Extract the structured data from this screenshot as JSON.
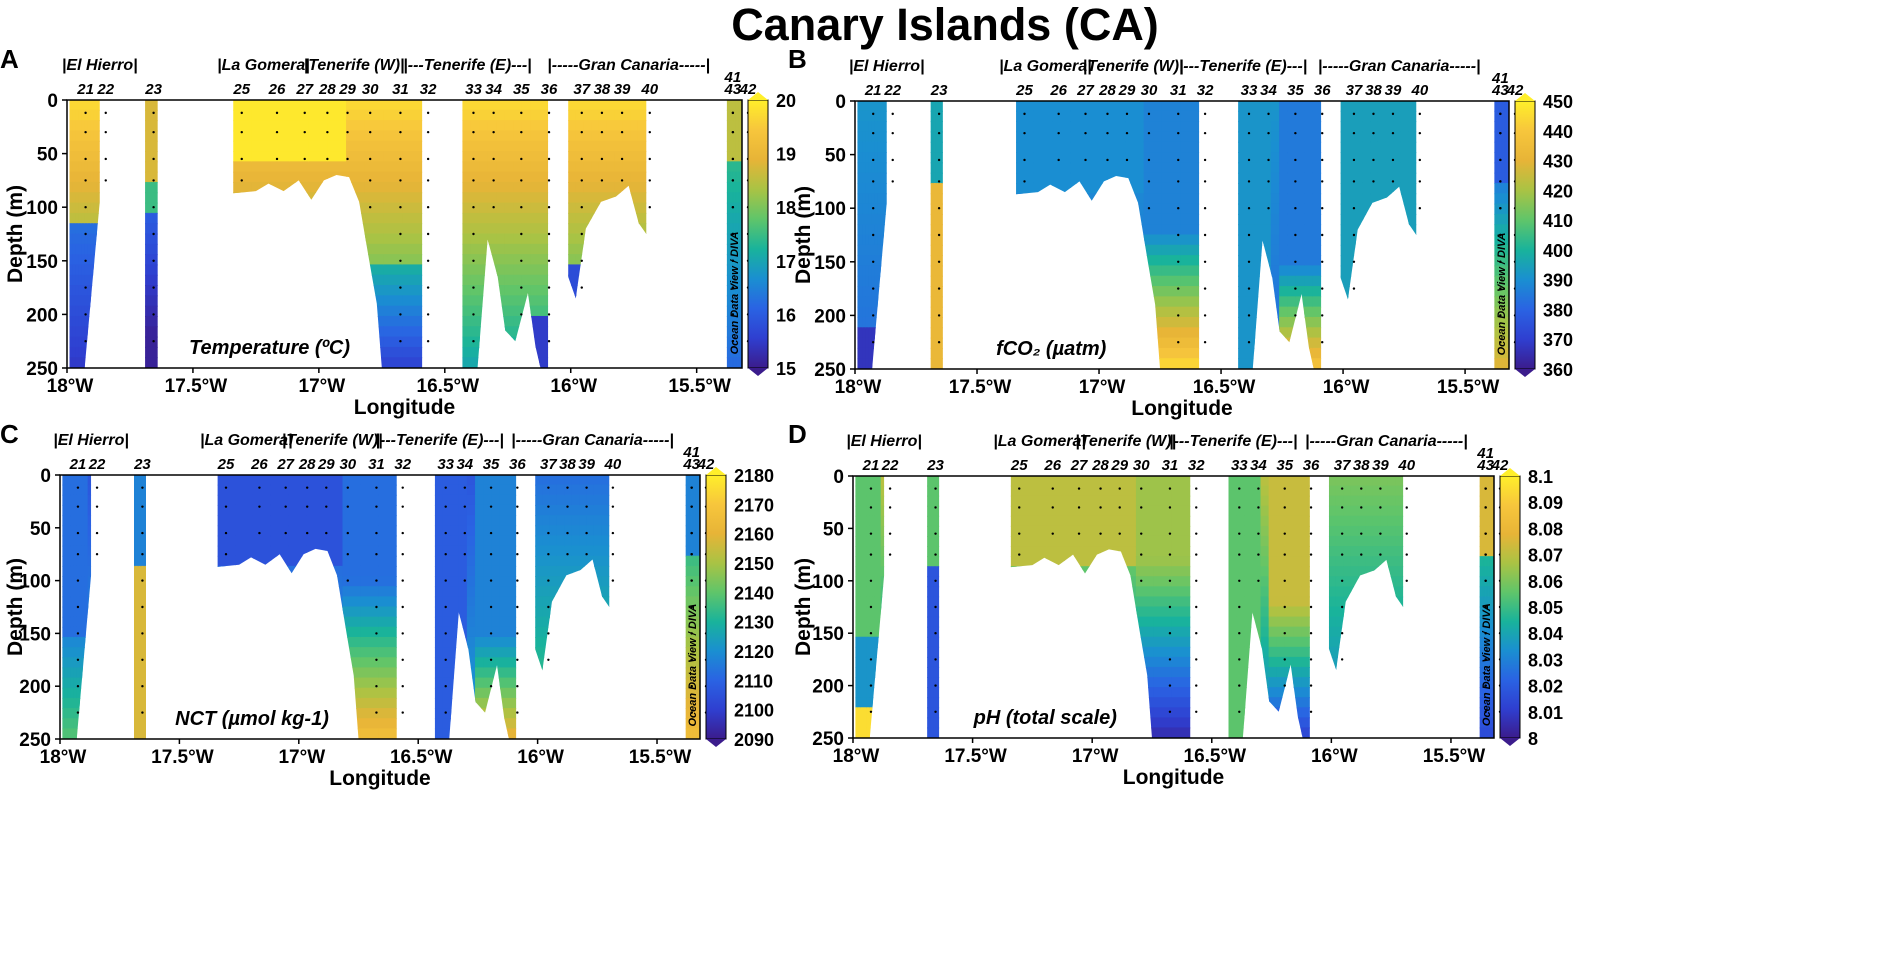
{
  "title": "Canary Islands (CA)",
  "colors": {
    "colormap": [
      "#3b1c8c",
      "#2f3fd0",
      "#2a63e3",
      "#1a8fd1",
      "#19b39b",
      "#5fc56a",
      "#a9c344",
      "#e7b437",
      "#f7c63c",
      "#ffef2a"
    ],
    "station_dot": "#000000",
    "frame": "#000000"
  },
  "chart_data": [
    {
      "panel": "A",
      "type": "heatmap",
      "variable_label": "Temperature (ºC)",
      "xlabel": "Longitude",
      "ylabel": "Depth (m)",
      "xlim": [
        -18.0,
        -15.32
      ],
      "ylim": [
        0,
        250
      ],
      "x_ticks": [
        -18,
        -17.5,
        -17,
        -16.5,
        -16,
        -15.5
      ],
      "x_tick_labels": [
        "18°W",
        "17.5°W",
        "17°W",
        "16.5°W",
        "16°W",
        "15.5°W"
      ],
      "y_ticks": [
        0,
        50,
        100,
        150,
        200,
        250
      ],
      "y_tick_labels": [
        "0",
        "50",
        "100",
        "150",
        "200",
        "250"
      ],
      "colorbar_range": [
        15,
        20
      ],
      "colorbar_ticks": [
        "20",
        "19",
        "18",
        "17",
        "16",
        "15"
      ],
      "watermark": "Ocean Data View / DIVA"
    },
    {
      "panel": "B",
      "type": "heatmap",
      "variable_label": "fCO₂ (µatm)",
      "xlabel": "Longitude",
      "ylabel": "Depth (m)",
      "xlim": [
        -18.0,
        -15.32
      ],
      "ylim": [
        0,
        250
      ],
      "x_ticks": [
        -18,
        -17.5,
        -17,
        -16.5,
        -16,
        -15.5
      ],
      "x_tick_labels": [
        "18°W",
        "17.5°W",
        "17°W",
        "16.5°W",
        "16°W",
        "15.5°W"
      ],
      "y_ticks": [
        0,
        50,
        100,
        150,
        200,
        250
      ],
      "y_tick_labels": [
        "0",
        "50",
        "100",
        "150",
        "200",
        "250"
      ],
      "colorbar_range": [
        360,
        450
      ],
      "colorbar_ticks": [
        "450",
        "440",
        "430",
        "420",
        "410",
        "400",
        "390",
        "380",
        "370",
        "360"
      ],
      "watermark": "Ocean Data View / DIVA"
    },
    {
      "panel": "C",
      "type": "heatmap",
      "variable_label": "NCT (µmol kg-1)",
      "xlabel": "Longitude",
      "ylabel": "Depth (m)",
      "xlim": [
        -18.0,
        -15.32
      ],
      "ylim": [
        0,
        250
      ],
      "x_ticks": [
        -18,
        -17.5,
        -17,
        -16.5,
        -16,
        -15.5
      ],
      "x_tick_labels": [
        "18°W",
        "17.5°W",
        "17°W",
        "16.5°W",
        "16°W",
        "15.5°W"
      ],
      "y_ticks": [
        0,
        50,
        100,
        150,
        200,
        250
      ],
      "y_tick_labels": [
        "0",
        "50",
        "100",
        "150",
        "200",
        "250"
      ],
      "colorbar_range": [
        2090,
        2180
      ],
      "colorbar_ticks": [
        "2180",
        "2170",
        "2160",
        "2150",
        "2140",
        "2130",
        "2120",
        "2110",
        "2100",
        "2090"
      ],
      "watermark": "Ocean Data View / DIVA"
    },
    {
      "panel": "D",
      "type": "heatmap",
      "variable_label": "pH (total scale)",
      "xlabel": "Longitude",
      "ylabel": "Depth (m)",
      "xlim": [
        -18.0,
        -15.32
      ],
      "ylim": [
        0,
        250
      ],
      "x_ticks": [
        -18,
        -17.5,
        -17,
        -16.5,
        -16,
        -15.5
      ],
      "x_tick_labels": [
        "18°W",
        "17.5°W",
        "17°W",
        "16.5°W",
        "16°W",
        "15.5°W"
      ],
      "y_ticks": [
        0,
        50,
        100,
        150,
        200,
        250
      ],
      "y_tick_labels": [
        "0",
        "50",
        "100",
        "150",
        "200",
        "250"
      ],
      "colorbar_range": [
        8.0,
        8.1
      ],
      "colorbar_ticks": [
        "8.1",
        "8.09",
        "8.08",
        "8.07",
        "8.06",
        "8.05",
        "8.04",
        "8.03",
        "8.02",
        "8.01",
        "8"
      ],
      "watermark": "Ocean Data View / DIVA"
    }
  ],
  "islands": [
    {
      "label": "|El Hierro|",
      "lon": -17.87
    },
    {
      "label": "|La Gomera|",
      "lon": -17.22
    },
    {
      "label": "|Tenerife (W)|",
      "lon": -16.86
    },
    {
      "label": "|---Tenerife (E)---|",
      "lon": -16.41
    },
    {
      "label": "|-----Gran Canaria-----|",
      "lon": -15.77
    }
  ],
  "stations": [
    {
      "id": "21",
      "lon": -17.95
    },
    {
      "id": "22",
      "lon": -17.87
    },
    {
      "id": "23",
      "lon": -17.68
    },
    {
      "id": "25",
      "lon": -17.33
    },
    {
      "id": "26",
      "lon": -17.19
    },
    {
      "id": "27",
      "lon": -17.08
    },
    {
      "id": "28",
      "lon": -16.99
    },
    {
      "id": "29",
      "lon": -16.91
    },
    {
      "id": "30",
      "lon": -16.82
    },
    {
      "id": "31",
      "lon": -16.7
    },
    {
      "id": "32",
      "lon": -16.59
    },
    {
      "id": "33",
      "lon": -16.41
    },
    {
      "id": "34",
      "lon": -16.33
    },
    {
      "id": "35",
      "lon": -16.22
    },
    {
      "id": "36",
      "lon": -16.11
    },
    {
      "id": "37",
      "lon": -15.98
    },
    {
      "id": "38",
      "lon": -15.9
    },
    {
      "id": "39",
      "lon": -15.82
    },
    {
      "id": "40",
      "lon": -15.71
    },
    {
      "id": "41",
      "lon": -15.38,
      "stack": "top"
    },
    {
      "id": "43",
      "lon": -15.38,
      "stack": "bottom"
    },
    {
      "id": "42",
      "lon": -15.32
    }
  ],
  "sections": [
    {
      "lon_min": -17.99,
      "lon_max": -17.87,
      "profile": [
        [
          -17.99,
          250
        ],
        [
          -17.93,
          250
        ],
        [
          -17.87,
          95
        ]
      ]
    },
    {
      "lon_min": -17.69,
      "lon_max": -17.64,
      "profile": [
        [
          -17.69,
          250
        ],
        [
          -17.64,
          250
        ]
      ]
    },
    {
      "lon_min": -17.34,
      "lon_max": -16.59,
      "profile": [
        [
          -17.34,
          87
        ],
        [
          -17.25,
          85
        ],
        [
          -17.2,
          78
        ],
        [
          -17.14,
          85
        ],
        [
          -17.08,
          75
        ],
        [
          -17.03,
          93
        ],
        [
          -16.98,
          75
        ],
        [
          -16.93,
          70
        ],
        [
          -16.88,
          72
        ],
        [
          -16.84,
          95
        ],
        [
          -16.8,
          150
        ],
        [
          -16.77,
          190
        ],
        [
          -16.75,
          250
        ],
        [
          -16.59,
          250
        ]
      ]
    },
    {
      "lon_min": -16.43,
      "lon_max": -16.09,
      "profile": [
        [
          -16.43,
          250
        ],
        [
          -16.37,
          250
        ],
        [
          -16.33,
          130
        ],
        [
          -16.29,
          165
        ],
        [
          -16.26,
          215
        ],
        [
          -16.22,
          225
        ],
        [
          -16.17,
          180
        ],
        [
          -16.14,
          230
        ],
        [
          -16.12,
          250
        ],
        [
          -16.09,
          250
        ]
      ]
    },
    {
      "lon_min": -16.01,
      "lon_max": -15.7,
      "profile": [
        [
          -16.01,
          165
        ],
        [
          -15.98,
          185
        ],
        [
          -15.94,
          120
        ],
        [
          -15.88,
          95
        ],
        [
          -15.82,
          90
        ],
        [
          -15.77,
          80
        ],
        [
          -15.73,
          115
        ],
        [
          -15.7,
          125
        ]
      ]
    },
    {
      "lon_min": -15.38,
      "lon_max": -15.32,
      "profile": [
        [
          -15.38,
          250
        ],
        [
          -15.32,
          250
        ]
      ]
    }
  ]
}
